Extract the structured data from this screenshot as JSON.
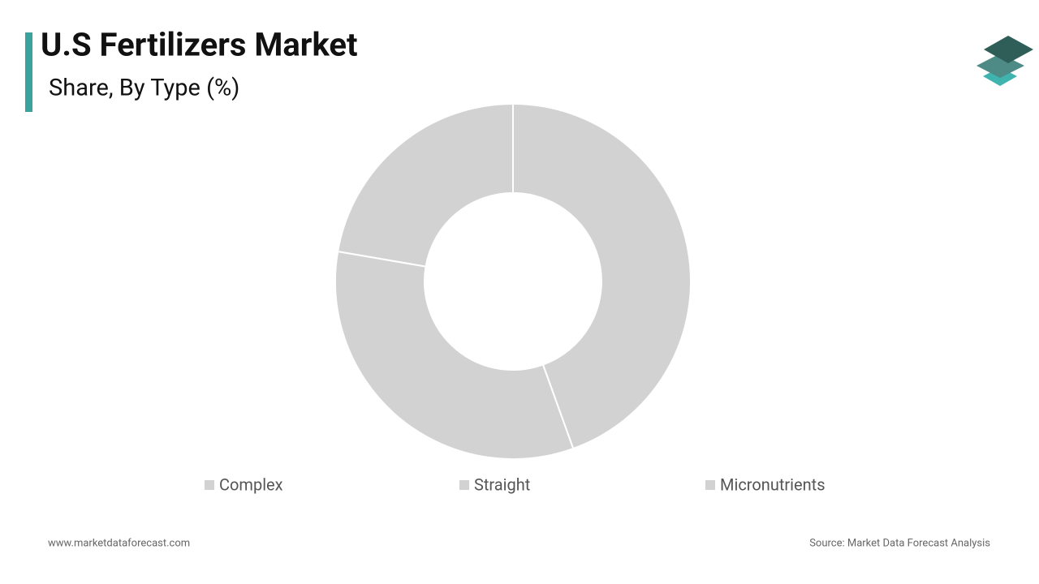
{
  "chart_data": {
    "type": "donut",
    "title": "U.S Fertilizers Market",
    "subtitle": "Share, By Type (%)",
    "categories": [
      "Complex",
      "Straight",
      "Micronutrients"
    ],
    "values": [
      44.5,
      33.2,
      22.3
    ],
    "colors": [
      "#d3d2d3",
      "#d3d2d3",
      "#d3d2d3"
    ],
    "footer_left": "www.marketdataforecast.com",
    "footer_right": "Source: Market Data Forecast Analysis"
  }
}
